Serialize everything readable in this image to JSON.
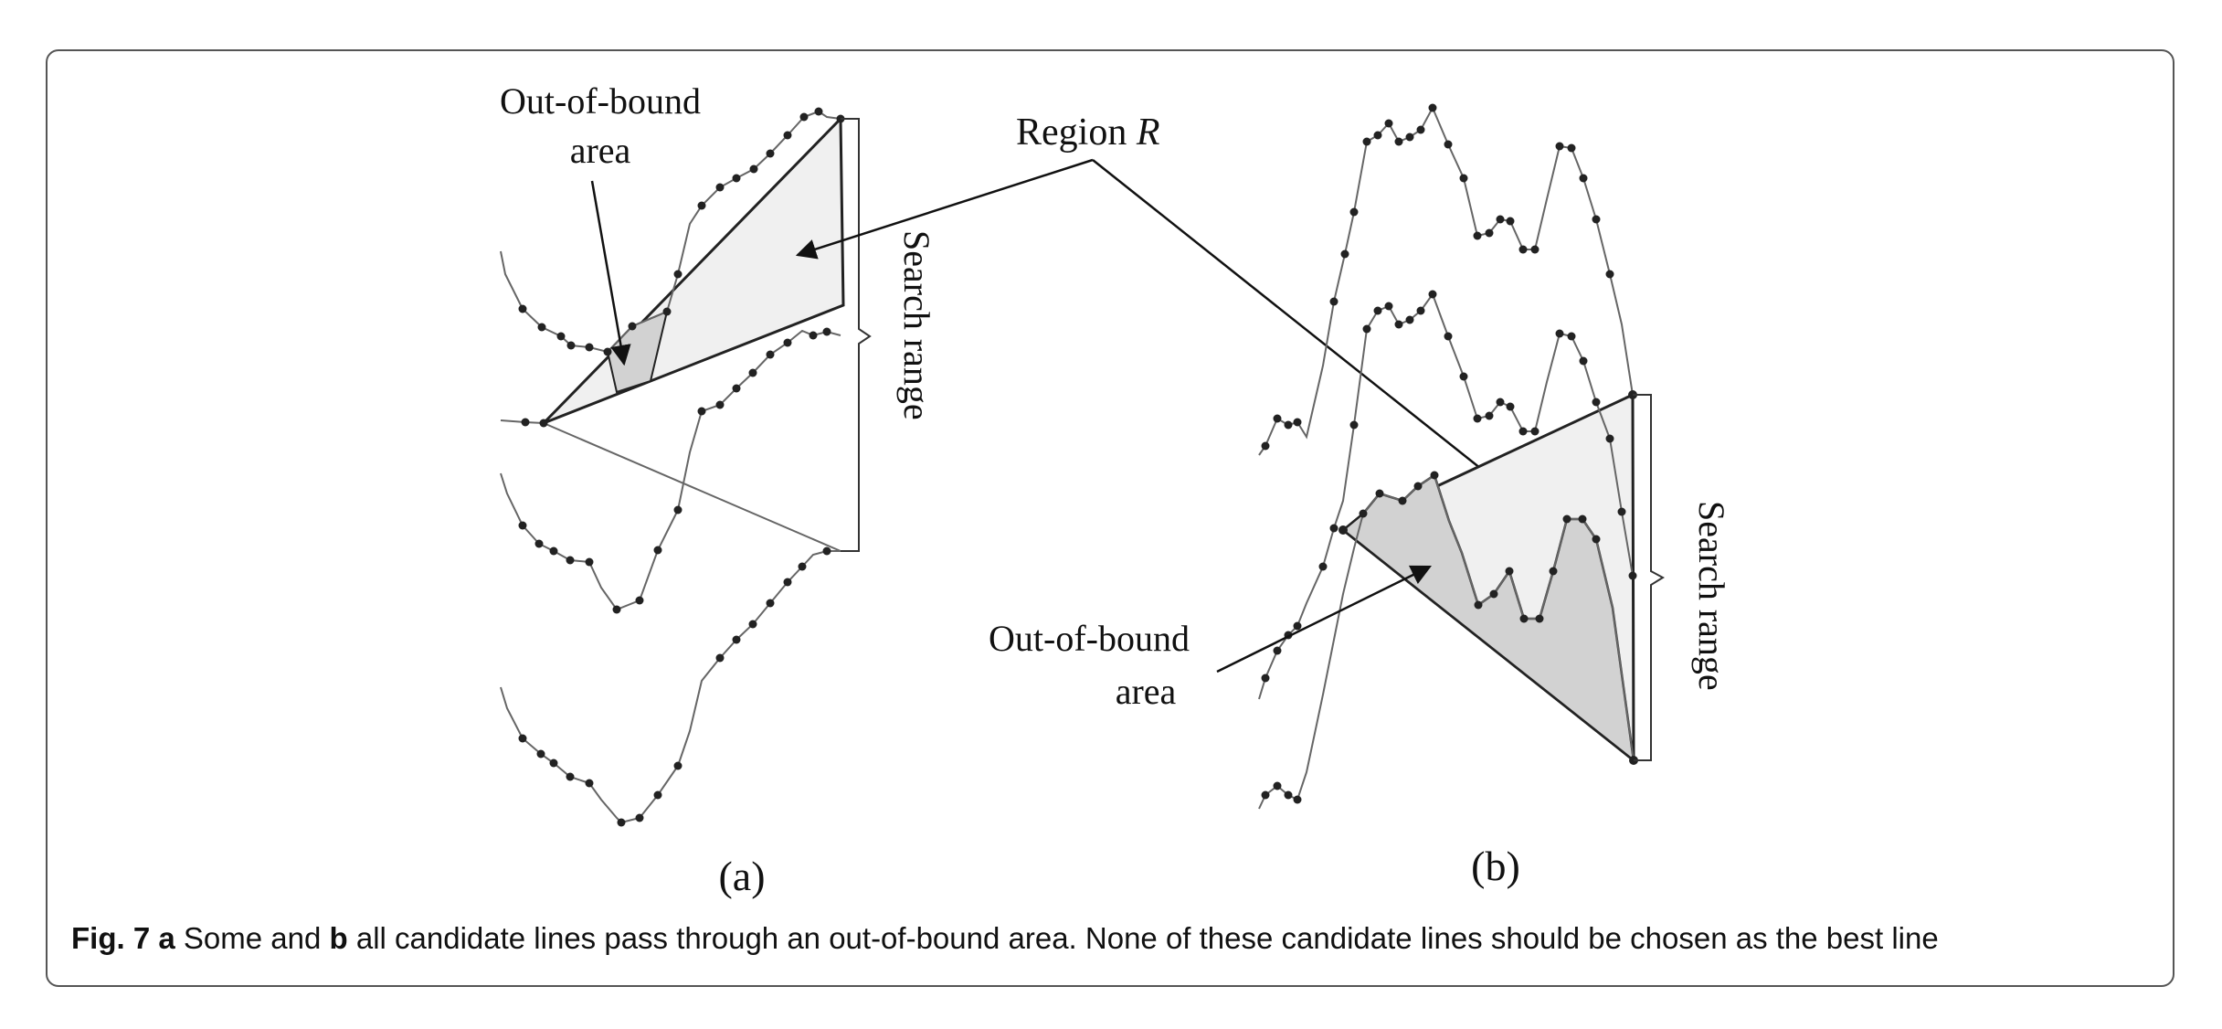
{
  "figure": {
    "panel_a": {
      "label": "(a)",
      "out_of_bound_label_line1": "Out-of-bound",
      "out_of_bound_label_line2": "area",
      "search_range_label": "Search range"
    },
    "panel_b": {
      "label": "(b)",
      "out_of_bound_label_line1": "Out-of-bound",
      "out_of_bound_label_line2": "area",
      "search_range_label": "Search range"
    },
    "region_label_prefix": "Region ",
    "region_label_var": "R"
  },
  "caption": {
    "fig_label": "Fig. 7",
    "a_label": "a",
    "text1": " Some and ",
    "b_label": "b",
    "text2": " all candidate lines pass through an out-of-bound area. None of these candidate lines should be chosen as the best line"
  },
  "colors": {
    "region_fill": "#f0f0f0",
    "out_of_bound_fill": "#d2d2d2",
    "line": "#222222",
    "series": "#444444"
  }
}
